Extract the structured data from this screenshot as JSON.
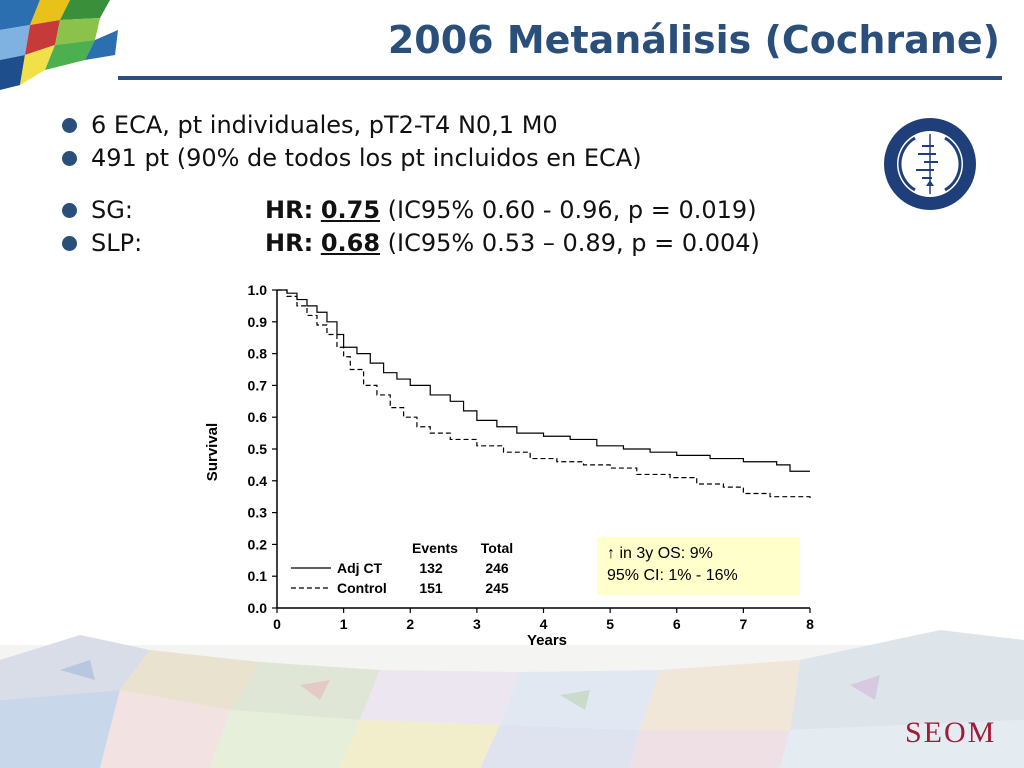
{
  "slide": {
    "title": "2006 Metanálisis (Cochrane)",
    "bullets": [
      {
        "text": "6 ECA, pt individuales, pT2-T4 N0,1 M0"
      },
      {
        "text": "491 pt (90% de todos los pt incluidos en ECA)"
      },
      {
        "text": "SG:",
        "hr_label": "HR:",
        "hr_value": "0.75",
        "hr_rest": " (IC95% 0.60 - 0.96, p = 0.019)"
      },
      {
        "text": "SLP:",
        "hr_label": "HR:",
        "hr_value": "0.68",
        "hr_rest": " (IC95% 0.53 – 0.89, p = 0.004)"
      }
    ],
    "annotation": {
      "line1": "↑ in 3y OS: 9%",
      "line2": "95% CI: 1% - 16%"
    },
    "logo_text": "SEOM",
    "colors": {
      "title": "#2b4f7b",
      "logo": "#a01b36",
      "annotation_bg": "#ffffcc"
    }
  },
  "chart_data": {
    "type": "line",
    "ylabel": "Survival",
    "xlabel": "Years",
    "xlim": [
      0,
      8
    ],
    "ylim": [
      0,
      1
    ],
    "xticks": [
      "0",
      "1",
      "2",
      "3",
      "4",
      "5",
      "6",
      "7",
      "8"
    ],
    "yticks": [
      "0.0",
      "0.1",
      "0.2",
      "0.3",
      "0.4",
      "0.5",
      "0.6",
      "0.7",
      "0.8",
      "0.9",
      "1.0"
    ],
    "grid": false,
    "step": true,
    "legend": {
      "position": "bottom-left",
      "headers": [
        "Events",
        "Total"
      ],
      "entries": [
        {
          "name": "Adj CT",
          "events": "132",
          "total": "246",
          "style": "solid"
        },
        {
          "name": "Control",
          "events": "151",
          "total": "245",
          "style": "dashed"
        }
      ]
    },
    "series": [
      {
        "name": "Adj CT",
        "style": "solid",
        "x": [
          0,
          0.15,
          0.3,
          0.45,
          0.6,
          0.75,
          0.9,
          1.0,
          1.2,
          1.4,
          1.6,
          1.8,
          2.0,
          2.3,
          2.6,
          2.8,
          3.0,
          3.3,
          3.6,
          4.0,
          4.4,
          4.8,
          5.2,
          5.6,
          6.0,
          6.5,
          7.0,
          7.5,
          7.7,
          8.0
        ],
        "y": [
          1.0,
          0.99,
          0.97,
          0.95,
          0.93,
          0.9,
          0.86,
          0.82,
          0.8,
          0.77,
          0.74,
          0.72,
          0.7,
          0.67,
          0.65,
          0.62,
          0.59,
          0.57,
          0.55,
          0.54,
          0.53,
          0.51,
          0.5,
          0.49,
          0.48,
          0.47,
          0.46,
          0.45,
          0.43,
          0.43
        ]
      },
      {
        "name": "Control",
        "style": "dashed",
        "x": [
          0,
          0.15,
          0.3,
          0.45,
          0.6,
          0.75,
          0.9,
          1.0,
          1.1,
          1.3,
          1.5,
          1.7,
          1.9,
          2.1,
          2.3,
          2.6,
          3.0,
          3.4,
          3.8,
          4.2,
          4.6,
          5.0,
          5.4,
          5.9,
          6.3,
          6.7,
          7.0,
          7.4,
          7.7,
          8.0
        ],
        "y": [
          1.0,
          0.98,
          0.95,
          0.92,
          0.89,
          0.86,
          0.82,
          0.79,
          0.75,
          0.7,
          0.67,
          0.63,
          0.6,
          0.57,
          0.55,
          0.53,
          0.51,
          0.49,
          0.47,
          0.46,
          0.45,
          0.44,
          0.42,
          0.41,
          0.39,
          0.38,
          0.36,
          0.35,
          0.35,
          0.34
        ]
      }
    ]
  }
}
